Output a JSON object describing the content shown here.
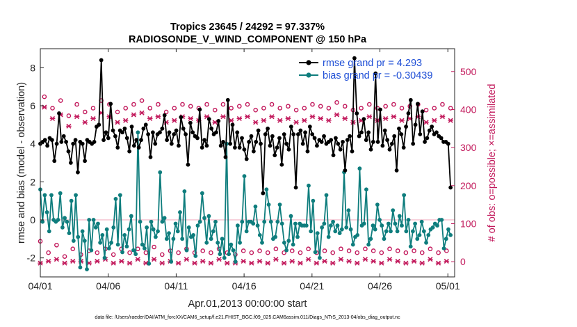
{
  "chart_data": {
    "type": "line",
    "title": "Tropics 23645 / 24292 = 97.337%",
    "subtitle": "RADIOSONDE_V_WIND_COMPONENT @ 150 hPa",
    "xlabel": "Apr.01,2013 00:00:00 start",
    "ylabel": "rmse and bias (model - observation)",
    "ylabel_right": "# of obs: o=possible; ×=assimilated",
    "footnote": "data file: /Users/raeder/DAI/ATM_forcXX/CAM6_setup/f.e21.FHIST_BGC.f09_025.CAM6assim.011/Diags_NTrS_2013-04/obs_diag_output.nc",
    "xlim": [
      0,
      30.5
    ],
    "ylim": [
      -3,
      9
    ],
    "ylim_right": [
      -40,
      560
    ],
    "x_ticks": [
      0,
      5,
      10,
      15,
      20,
      25,
      30
    ],
    "x_tick_labels": [
      "04/01",
      "04/06",
      "04/11",
      "04/16",
      "04/21",
      "04/26",
      "05/01"
    ],
    "y_ticks": [
      -2,
      0,
      2,
      4,
      6,
      8
    ],
    "y_tick_labels": [
      "-2",
      "0",
      "2",
      "4",
      "6",
      "8"
    ],
    "y_ticks_right": [
      0,
      100,
      200,
      300,
      400,
      500
    ],
    "y_tick_labels_right": [
      "0",
      "100",
      "200",
      "300",
      "400",
      "500"
    ],
    "x_step": 0.25,
    "zero_line": 0,
    "legend_position": "top-right",
    "series": [
      {
        "name": "rmse grand pr = 4.293",
        "axis": "left",
        "color": "#000000",
        "values": [
          4.0,
          4.1,
          4.2,
          3.9,
          4.3,
          4.2,
          3.1,
          4.0,
          5.6,
          4.1,
          4.4,
          4.1,
          3.6,
          3.0,
          4.0,
          4.2,
          2.5,
          4.1,
          4.0,
          3.1,
          4.2,
          4.1,
          4.0,
          4.1,
          4.9,
          5.0,
          8.4,
          4.2,
          4.6,
          4.3,
          6.1,
          4.7,
          4.4,
          3.8,
          4.7,
          4.6,
          4.8,
          4.3,
          3.6,
          4.9,
          3.9,
          4.2,
          3.8,
          4.2,
          4.8,
          5.0,
          4.5,
          3.3,
          4.6,
          4.0,
          4.5,
          4.6,
          4.8,
          5.5,
          4.2,
          4.6,
          4.0,
          4.5,
          4.7,
          3.9,
          5.4,
          4.8,
          4.5,
          2.9,
          5.1,
          4.6,
          4.4,
          4.3,
          5.8,
          3.8,
          4.2,
          3.9,
          5.3,
          4.8,
          4.5,
          4.6,
          5.2,
          3.9,
          4.1,
          3.3,
          6.3,
          4.0,
          5.0,
          3.8,
          4.6,
          3.8,
          4.3,
          3.7,
          3.2,
          4.1,
          4.4,
          3.6,
          4.1,
          4.7,
          4.0,
          1.4,
          4.5,
          4.8,
          3.9,
          4.4,
          3.4,
          3.8,
          4.3,
          2.9,
          4.5,
          4.0,
          3.7,
          4.9,
          4.5,
          1.7,
          4.5,
          4.7,
          4.0,
          4.6,
          3.6,
          4.9,
          4.5,
          4.3,
          3.9,
          4.2,
          4.1,
          4.4,
          4.0,
          4.1,
          4.2,
          3.4,
          4.3,
          4.0,
          3.7,
          4.1,
          2.6,
          4.2,
          4.4,
          3.6,
          8.5,
          5.6,
          4.4,
          4.6,
          5.3,
          4.2,
          4.6,
          3.7,
          4.1,
          7.7,
          4.1,
          5.8,
          3.9,
          4.7,
          4.2,
          3.7,
          4.0,
          4.4,
          2.6,
          4.8,
          4.5,
          3.8,
          4.9,
          5.6,
          6.3,
          4.0,
          5.0,
          6.1,
          4.5,
          5.7,
          4.1,
          4.3,
          4.7,
          4.9,
          4.5,
          4.6,
          4.4,
          4.3,
          4.1,
          4.1,
          4.0,
          1.7
        ]
      },
      {
        "name": "bias grand pr = -0.30439",
        "axis": "left",
        "color": "#0e7d7d",
        "values": [
          1.6,
          -0.1,
          1.3,
          0.4,
          -0.6,
          1.3,
          0.0,
          -0.1,
          0.0,
          1.4,
          -0.4,
          0.1,
          -0.1,
          -0.7,
          1.0,
          -1.1,
          1.3,
          -0.9,
          -2.5,
          -0.6,
          -1.1,
          -2.6,
          0.0,
          -1.6,
          0.0,
          -0.4,
          -0.2,
          -1.2,
          -0.8,
          -2.0,
          -0.5,
          -1.5,
          -1.2,
          -0.4,
          1.1,
          -1.3,
          1.3,
          -1.7,
          -0.8,
          -1.4,
          -0.5,
          0.2,
          -1.6,
          -1.8,
          4.6,
          -0.1,
          -1.3,
          -1.5,
          -0.4,
          -2.3,
          -0.1,
          -0.5,
          -0.9,
          -0.6,
          2.5,
          -0.1,
          0.1,
          -1.0,
          -0.7,
          -2.2,
          -1.0,
          -0.2,
          -0.6,
          0.4,
          -1.0,
          1.5,
          -1.6,
          -0.4,
          -0.9,
          -0.8,
          -1.9,
          -0.3,
          -0.1,
          1.4,
          0.1,
          -1.2,
          0.2,
          -1.0,
          -0.6,
          -0.1,
          -1.2,
          -1.8,
          -1.0,
          -2.0,
          4.0,
          -1.8,
          -1.3,
          -1.6,
          -2.2,
          -0.3,
          -1.2,
          -0.1,
          2.3,
          -0.6,
          -0.1,
          -0.1,
          -0.2,
          0.7,
          -0.3,
          -0.8,
          -1.2,
          -0.1,
          1.6,
          0.8,
          -0.1,
          -1.0,
          -0.9,
          -0.1,
          0.8,
          -0.2,
          -1.2,
          -1.6,
          -1.1,
          0.2,
          -1.3,
          -0.2,
          -0.9,
          -0.2,
          -0.3,
          -0.3,
          -0.3,
          1.8,
          -0.6,
          1.0,
          -1.7,
          -0.7,
          -2.0,
          -0.4,
          -0.2,
          1.3,
          -0.9,
          -0.3,
          -0.1,
          -0.6,
          -0.3,
          -0.7,
          -0.5,
          2.5,
          -0.4,
          0.5,
          -0.5,
          -1.3,
          -0.9,
          -0.8,
          2.7,
          -0.3,
          -0.2,
          1.6,
          -1.3,
          -1.0,
          -0.3,
          -0.5,
          0.8,
          0.0,
          -0.3,
          -1.0,
          -0.6,
          -0.2,
          -0.6,
          0.5,
          -0.2,
          -0.6,
          0.2,
          -0.3,
          1.3,
          -0.6,
          0.0,
          -1.4,
          -0.6,
          -0.2,
          -1.0,
          -0.8,
          -0.1,
          -0.6,
          -1.2,
          -0.8,
          -0.5,
          -0.4,
          -0.2,
          -0.3,
          0.0,
          0.0,
          -1.5,
          -1.0,
          -0.5,
          -0.8
        ]
      },
      {
        "name": "obs possible",
        "axis": "right",
        "marker": "o",
        "color": "#c2185b",
        "values": [
          50,
          430,
          20,
          400,
          40,
          420,
          10,
          380,
          30,
          410,
          15,
          390,
          25,
          400,
          20,
          420,
          30,
          410,
          15,
          390,
          30,
          400,
          20,
          410,
          30,
          420,
          20,
          400,
          35,
          410,
          15,
          390,
          25,
          400,
          20,
          410,
          30,
          405,
          20,
          400,
          25,
          410,
          20,
          395,
          30,
          410,
          20,
          400,
          15,
          405,
          25,
          410,
          20,
          395,
          25,
          400,
          20,
          410,
          30,
          400,
          20,
          405,
          25,
          395,
          20,
          400,
          30,
          410,
          20,
          405,
          25,
          400,
          20,
          415,
          30,
          405,
          25,
          395,
          20,
          400,
          30,
          410,
          25,
          400,
          20,
          405,
          30,
          410,
          25,
          400,
          20,
          405,
          25,
          410,
          20,
          395,
          30,
          400,
          20,
          410,
          25,
          400
        ]
      },
      {
        "name": "obs assimilated",
        "axis": "right",
        "marker": "x",
        "color": "#c2185b",
        "values": [
          0,
          410,
          5,
          380,
          10,
          390,
          0,
          360,
          5,
          385,
          5,
          370,
          0,
          380,
          5,
          395,
          10,
          385,
          0,
          370,
          5,
          375,
          0,
          390,
          10,
          395,
          0,
          380,
          10,
          385,
          0,
          370,
          5,
          375,
          0,
          385,
          10,
          380,
          0,
          375,
          5,
          385,
          0,
          370,
          10,
          385,
          0,
          375,
          0,
          380,
          5,
          385,
          0,
          370,
          5,
          375,
          0,
          385,
          10,
          375,
          0,
          380,
          5,
          370,
          0,
          375,
          10,
          385,
          0,
          380,
          5,
          375,
          0,
          390,
          10,
          380,
          5,
          370,
          0,
          375,
          10,
          385,
          5,
          375,
          0,
          380,
          10,
          385,
          5,
          375,
          0,
          380,
          5,
          385,
          0,
          370,
          10,
          375,
          0,
          385,
          5,
          375
        ]
      }
    ]
  }
}
